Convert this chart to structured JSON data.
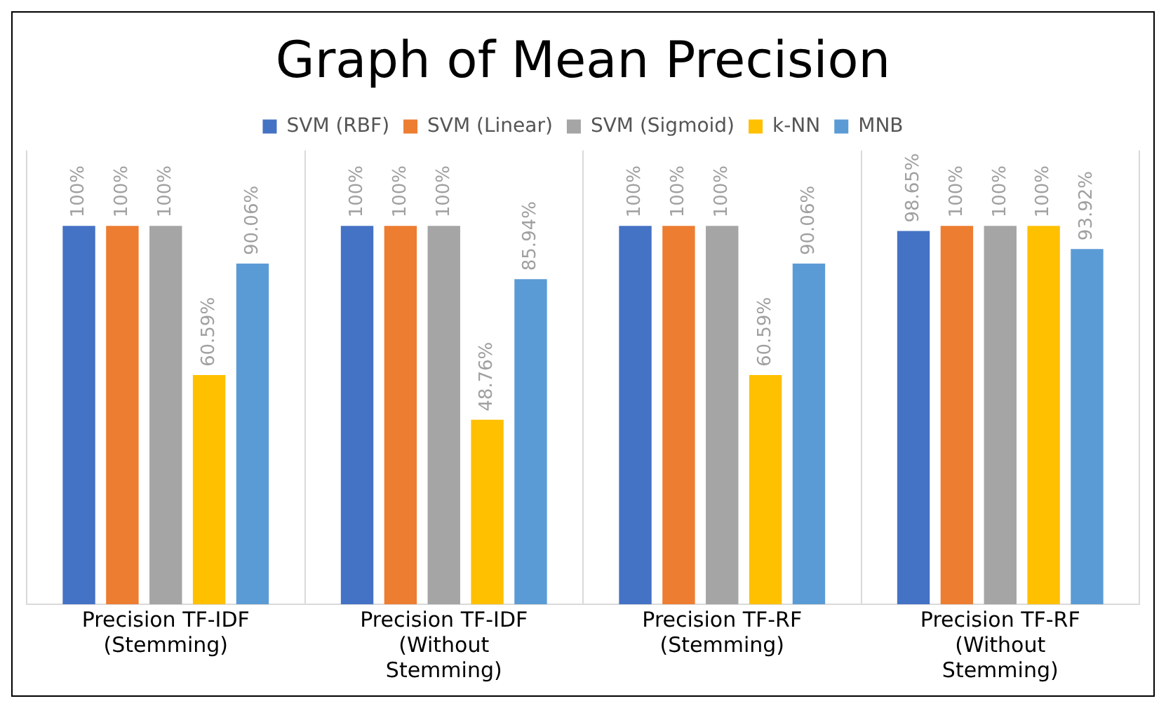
{
  "chart_data": {
    "type": "bar",
    "title": "Graph of Mean Precision",
    "categories": [
      "Precision TF-IDF (Stemming)",
      "Precision TF-IDF (Without Stemming)",
      "Precision TF-RF (Stemming)",
      "Precision TF-RF (Without Stemming)"
    ],
    "series": [
      {
        "name": "SVM (RBF)",
        "color": "#4472c4",
        "values": [
          100,
          100,
          100,
          98.65
        ],
        "value_labels": [
          "100%",
          "100%",
          "100%",
          "98.65%"
        ]
      },
      {
        "name": "SVM (Linear)",
        "color": "#ed7d31",
        "values": [
          100,
          100,
          100,
          100
        ],
        "value_labels": [
          "100%",
          "100%",
          "100%",
          "100%"
        ]
      },
      {
        "name": "SVM (Sigmoid)",
        "color": "#a5a5a5",
        "values": [
          100,
          100,
          100,
          100
        ],
        "value_labels": [
          "100%",
          "100%",
          "100%",
          "100%"
        ]
      },
      {
        "name": "k-NN",
        "color": "#ffc000",
        "values": [
          60.59,
          48.76,
          60.59,
          100
        ],
        "value_labels": [
          "60.59%",
          "48.76%",
          "60.59%",
          "100%"
        ]
      },
      {
        "name": "MNB",
        "color": "#5b9bd5",
        "values": [
          90.06,
          85.94,
          90.06,
          93.92
        ],
        "value_labels": [
          "90.06%",
          "85.94%",
          "90.06%",
          "93.92%"
        ]
      }
    ],
    "tick_labels": "x",
    "legend": "top",
    "grid": "x"
  }
}
